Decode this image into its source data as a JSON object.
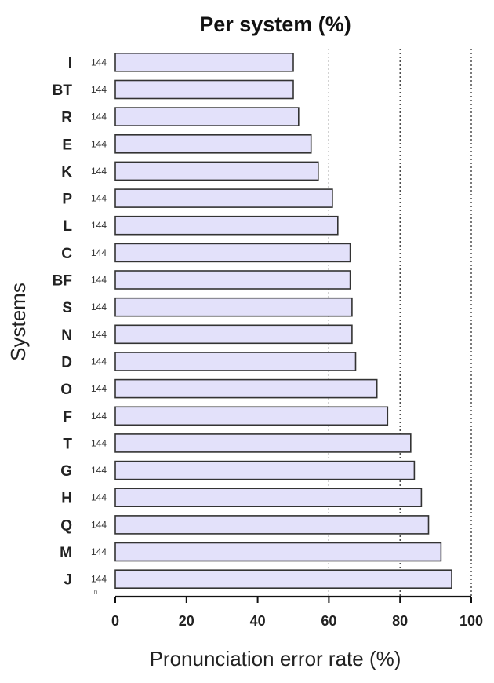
{
  "chart_data": {
    "type": "bar",
    "orientation": "horizontal",
    "title": "Per system (%)",
    "xlabel": "Pronunciation error rate (%)",
    "ylabel": "Systems",
    "categories": [
      "I",
      "BT",
      "R",
      "E",
      "K",
      "P",
      "L",
      "C",
      "BF",
      "S",
      "N",
      "D",
      "O",
      "F",
      "T",
      "G",
      "H",
      "Q",
      "M",
      "J"
    ],
    "values": [
      50,
      50,
      51.5,
      55,
      57,
      61,
      62.5,
      66,
      66,
      66.5,
      66.5,
      67.5,
      73.5,
      76.5,
      83,
      84,
      86,
      88,
      91.5,
      94.5
    ],
    "n_values": [
      "144",
      "144",
      "144",
      "144",
      "144",
      "144",
      "144",
      "144",
      "144",
      "144",
      "144",
      "144",
      "144",
      "144",
      "144",
      "144",
      "144",
      "144",
      "144",
      "144"
    ],
    "n_label": "n",
    "xlim": [
      0,
      100
    ],
    "xticks": [
      "0",
      "20",
      "40",
      "60",
      "80",
      "100"
    ],
    "reference_lines": [
      60,
      80,
      100
    ],
    "bar_color": "#e3e1fa",
    "grid": false,
    "legend": "none"
  }
}
